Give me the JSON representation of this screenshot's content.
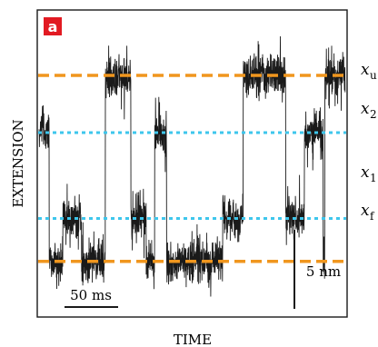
{
  "chart_data": {
    "type": "line",
    "panel_label": "a",
    "xlabel": "TIME",
    "ylabel": "EXTENSION",
    "grid": false,
    "levels": [
      {
        "name": "x",
        "subscript": "u",
        "value": 0.8,
        "style": "dashed",
        "color": "#f0961e"
      },
      {
        "name": "x",
        "subscript": "2",
        "value": 0.6,
        "style": "dotted",
        "color": "#3ec6ec"
      },
      {
        "name": "x",
        "subscript": "1",
        "value": 0.3,
        "style": "dotted",
        "color": "#3ec6ec"
      },
      {
        "name": "x",
        "subscript": "f",
        "value": 0.15,
        "style": "dashed",
        "color": "#f0961e"
      }
    ],
    "time_scalebar": {
      "label": "50 ms",
      "value": 50
    },
    "extension_scalebar": {
      "label": "5 nm",
      "value": 5
    },
    "series": [
      {
        "trace_segments": [
          {
            "t_start": 0,
            "t_end": 12,
            "level": "x2"
          },
          {
            "t_start": 12,
            "t_end": 28,
            "level": "xf"
          },
          {
            "t_start": 28,
            "t_end": 50,
            "level": "x1"
          },
          {
            "t_start": 50,
            "t_end": 78,
            "level": "xf"
          },
          {
            "t_start": 78,
            "t_end": 108,
            "level": "xu"
          },
          {
            "t_start": 108,
            "t_end": 126,
            "level": "x1"
          },
          {
            "t_start": 126,
            "t_end": 136,
            "level": "xf"
          },
          {
            "t_start": 136,
            "t_end": 150,
            "level": "x2"
          },
          {
            "t_start": 150,
            "t_end": 216,
            "level": "xf"
          },
          {
            "t_start": 216,
            "t_end": 240,
            "level": "x1"
          },
          {
            "t_start": 240,
            "t_end": 290,
            "level": "xu"
          },
          {
            "t_start": 290,
            "t_end": 312,
            "level": "x1"
          },
          {
            "t_start": 312,
            "t_end": 334,
            "level": "x2"
          },
          {
            "t_start": 334,
            "t_end": 336,
            "level": "xf"
          },
          {
            "t_start": 336,
            "t_end": 360,
            "level": "xu"
          }
        ],
        "noise_amplitude": 0.11,
        "t_range": [
          0,
          360
        ]
      }
    ]
  }
}
